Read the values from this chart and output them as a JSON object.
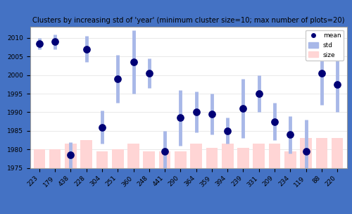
{
  "categories": [
    "223",
    "179",
    "438",
    "228",
    "304",
    "251",
    "360",
    "248",
    "441",
    "290",
    "364",
    "359",
    "394",
    "239",
    "331",
    "209",
    "234",
    "119",
    "88",
    "220"
  ],
  "means": [
    2008.5,
    2009.0,
    1978.5,
    2007.0,
    1986.0,
    1999.0,
    2003.5,
    2000.5,
    1979.5,
    1988.5,
    1990.0,
    1989.5,
    1985.0,
    1991.0,
    1995.0,
    1987.5,
    1984.0,
    1979.5,
    2000.5,
    1997.5
  ],
  "stds": [
    1.5,
    2.0,
    3.5,
    3.5,
    4.5,
    6.5,
    8.5,
    4.0,
    5.5,
    7.5,
    5.5,
    5.5,
    3.5,
    8.0,
    5.0,
    5.0,
    5.0,
    8.5,
    8.5,
    7.5
  ],
  "sizes": [
    1980.0,
    1980.0,
    1981.5,
    1982.5,
    1979.5,
    1980.0,
    1981.5,
    1979.5,
    1979.5,
    1979.5,
    1981.5,
    1980.5,
    1981.5,
    1980.5,
    1981.5,
    1981.5,
    1979.5,
    1983.0,
    1983.0,
    1983.0
  ],
  "title": "Clusters by increasing std of 'year' (minimum cluster size=10; max number of plots=20)",
  "ylim": [
    1975,
    2013
  ],
  "yticks": [
    1975,
    1980,
    1985,
    1990,
    1995,
    2000,
    2005,
    2010
  ],
  "bar_color": "#ffd5d5",
  "std_color": "#a8b8e8",
  "mean_color": "#000075",
  "background_color": "#ffffff",
  "border_color": "#4472c4",
  "title_fontsize": 7.2,
  "tick_fontsize": 6.5,
  "legend_fontsize": 6.5,
  "std_linewidth": 3.5,
  "dot_size": 45
}
